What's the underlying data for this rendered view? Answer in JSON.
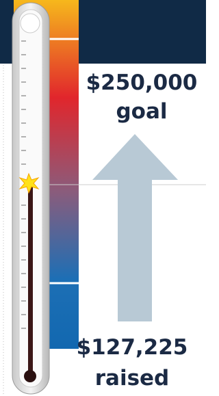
{
  "goal": {
    "amount": "$250,000",
    "label": "goal"
  },
  "raised": {
    "amount": "$127,225",
    "label": "raised"
  }
}
